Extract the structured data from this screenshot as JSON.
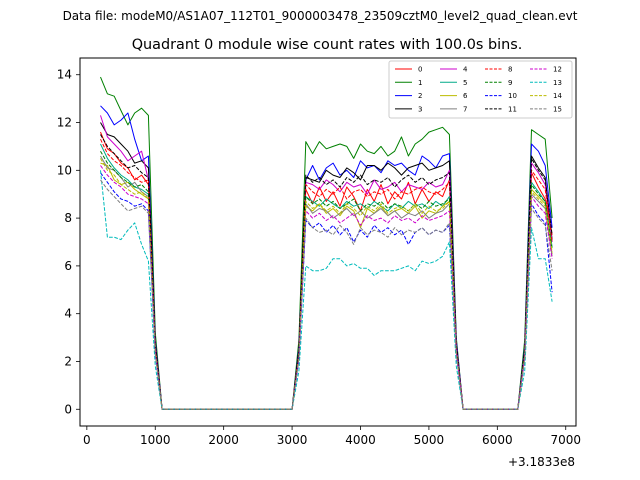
{
  "chart_data": {
    "type": "line",
    "suptitle": "Data file: modeM0/AS1A07_112T01_9000003478_23509cztM0_level2_quad_clean.evt",
    "title": "Quadrant 0 module wise count rates with 100.0s bins.",
    "xlabel": "",
    "ylabel": "",
    "x_offset_label": "+3.1833e8",
    "xlim": [
      -100,
      7150
    ],
    "ylim": [
      -0.7,
      14.7
    ],
    "xticks": [
      0,
      1000,
      2000,
      3000,
      4000,
      5000,
      6000,
      7000
    ],
    "xtick_labels": [
      "0",
      "1000",
      "2000",
      "3000",
      "4000",
      "5000",
      "6000",
      "7000"
    ],
    "yticks": [
      0,
      2,
      4,
      6,
      8,
      10,
      12,
      14
    ],
    "ytick_labels": [
      "0",
      "2",
      "4",
      "6",
      "8",
      "10",
      "12",
      "14"
    ],
    "grid": false,
    "legend_location": "top-right",
    "legend_columns": 4,
    "x": [
      200,
      300,
      400,
      500,
      600,
      700,
      800,
      900,
      1000,
      1100,
      1200,
      1300,
      1400,
      1500,
      1600,
      1700,
      1800,
      1900,
      2000,
      2100,
      2200,
      2300,
      2400,
      2500,
      2600,
      2700,
      2800,
      2900,
      3000,
      3100,
      3200,
      3300,
      3400,
      3500,
      3600,
      3700,
      3800,
      3900,
      4000,
      4100,
      4200,
      4300,
      4400,
      4500,
      4600,
      4700,
      4800,
      4900,
      5000,
      5100,
      5200,
      5300,
      5400,
      5500,
      5600,
      5700,
      5800,
      5900,
      6000,
      6100,
      6200,
      6300,
      6400,
      6500,
      6600,
      6700,
      6800
    ],
    "series": [
      {
        "name": "0",
        "color": "#ff0000",
        "dash": "solid",
        "values": [
          11.6,
          10.9,
          10.7,
          10.3,
          10.1,
          9.6,
          9.8,
          9.4,
          2.6,
          0,
          0,
          0,
          0,
          0,
          0,
          0,
          0,
          0,
          0,
          0,
          0,
          0,
          0,
          0,
          0,
          0,
          0,
          0,
          0,
          2.4,
          9.2,
          8.6,
          9.3,
          8.7,
          9.1,
          8.5,
          9.3,
          8.9,
          8.3,
          9.2,
          8.7,
          9.4,
          8.6,
          9.1,
          8.8,
          9.5,
          8.6,
          9.2,
          8.7,
          9.1,
          8.9,
          9.6,
          2.6,
          0,
          0,
          0,
          0,
          0,
          0,
          0,
          0,
          0,
          2.3,
          9.9,
          9.3,
          8.8,
          7.3
        ]
      },
      {
        "name": "1",
        "color": "#008000",
        "dash": "solid",
        "values": [
          13.9,
          13.2,
          13.1,
          12.5,
          11.9,
          12.4,
          12.6,
          12.3,
          3.2,
          0,
          0,
          0,
          0,
          0,
          0,
          0,
          0,
          0,
          0,
          0,
          0,
          0,
          0,
          0,
          0,
          0,
          0,
          0,
          0,
          2.9,
          11.2,
          10.7,
          11.2,
          10.9,
          11.0,
          11.1,
          11.0,
          10.5,
          11.1,
          10.8,
          10.7,
          11.0,
          10.6,
          10.8,
          11.4,
          10.6,
          11.1,
          11.3,
          11.6,
          11.7,
          11.8,
          11.5,
          3.0,
          0,
          0,
          0,
          0,
          0,
          0,
          0,
          0,
          0,
          2.9,
          11.7,
          11.5,
          11.3,
          8.0
        ]
      },
      {
        "name": "2",
        "color": "#0000ff",
        "dash": "solid",
        "values": [
          12.7,
          12.4,
          11.9,
          12.1,
          12.4,
          11.3,
          10.4,
          10.6,
          2.9,
          0,
          0,
          0,
          0,
          0,
          0,
          0,
          0,
          0,
          0,
          0,
          0,
          0,
          0,
          0,
          0,
          0,
          0,
          0,
          0,
          2.6,
          9.6,
          10.2,
          9.6,
          10.1,
          10.3,
          9.8,
          10.0,
          9.7,
          10.4,
          10.1,
          10.2,
          9.9,
          10.4,
          10.2,
          10.3,
          10.0,
          9.8,
          10.6,
          10.4,
          10.1,
          10.6,
          10.7,
          2.9,
          0,
          0,
          0,
          0,
          0,
          0,
          0,
          0,
          0,
          2.6,
          11.1,
          10.8,
          10.2,
          7.6
        ]
      },
      {
        "name": "3",
        "color": "#000000",
        "dash": "solid",
        "values": [
          12.0,
          11.5,
          11.4,
          11.1,
          10.8,
          10.3,
          10.4,
          10.1,
          2.8,
          0,
          0,
          0,
          0,
          0,
          0,
          0,
          0,
          0,
          0,
          0,
          0,
          0,
          0,
          0,
          0,
          0,
          0,
          0,
          0,
          2.5,
          9.7,
          9.6,
          9.5,
          10.0,
          9.8,
          9.7,
          10.1,
          9.9,
          9.6,
          10.2,
          10.2,
          10.0,
          10.3,
          10.1,
          9.8,
          10.1,
          10.2,
          10.3,
          10.0,
          10.1,
          10.2,
          10.4,
          2.8,
          0,
          0,
          0,
          0,
          0,
          0,
          0,
          0,
          0,
          2.5,
          10.6,
          10.1,
          9.7,
          7.1
        ]
      },
      {
        "name": "4",
        "color": "#cc00cc",
        "dash": "solid",
        "values": [
          12.3,
          11.4,
          11.1,
          10.8,
          10.4,
          10.6,
          10.8,
          9.6,
          2.7,
          0,
          0,
          0,
          0,
          0,
          0,
          0,
          0,
          0,
          0,
          0,
          0,
          0,
          0,
          0,
          0,
          0,
          0,
          0,
          0,
          2.4,
          9.5,
          9.4,
          9.2,
          9.6,
          9.4,
          9.1,
          9.5,
          9.3,
          9.4,
          9.0,
          9.6,
          9.2,
          9.3,
          9.5,
          9.1,
          9.4,
          9.3,
          9.2,
          9.5,
          9.3,
          9.4,
          10.0,
          2.7,
          0,
          0,
          0,
          0,
          0,
          0,
          0,
          0,
          0,
          2.4,
          10.3,
          9.9,
          9.4,
          7.0
        ]
      },
      {
        "name": "5",
        "color": "#00aa88",
        "dash": "solid",
        "values": [
          11.1,
          10.5,
          10.1,
          9.8,
          9.6,
          9.3,
          9.2,
          9.0,
          2.5,
          0,
          0,
          0,
          0,
          0,
          0,
          0,
          0,
          0,
          0,
          0,
          0,
          0,
          0,
          0,
          0,
          0,
          0,
          0,
          0,
          2.3,
          8.9,
          8.7,
          8.5,
          8.8,
          8.6,
          8.4,
          8.7,
          8.5,
          8.6,
          8.4,
          8.7,
          8.5,
          8.3,
          8.6,
          8.4,
          8.7,
          8.5,
          8.6,
          8.4,
          8.7,
          8.5,
          8.9,
          2.5,
          0,
          0,
          0,
          0,
          0,
          0,
          0,
          0,
          0,
          2.3,
          9.5,
          9.1,
          8.7,
          6.8
        ]
      },
      {
        "name": "6",
        "color": "#bbbb00",
        "dash": "solid",
        "values": [
          10.3,
          10.2,
          9.6,
          9.4,
          9.5,
          9.2,
          9.0,
          8.8,
          2.4,
          0,
          0,
          0,
          0,
          0,
          0,
          0,
          0,
          0,
          0,
          0,
          0,
          0,
          0,
          0,
          0,
          0,
          0,
          0,
          0,
          2.2,
          8.5,
          8.3,
          8.6,
          8.2,
          8.4,
          8.1,
          8.5,
          8.3,
          7.6,
          8.4,
          8.2,
          8.5,
          8.1,
          8.3,
          8.4,
          8.2,
          8.5,
          8.0,
          8.3,
          8.2,
          8.5,
          8.7,
          2.4,
          0,
          0,
          0,
          0,
          0,
          0,
          0,
          0,
          0,
          2.2,
          9.2,
          8.9,
          8.6,
          6.5
        ]
      },
      {
        "name": "7",
        "color": "#7f7f7f",
        "dash": "solid",
        "values": [
          10.6,
          10.1,
          10.0,
          9.7,
          9.3,
          9.5,
          9.1,
          8.9,
          2.4,
          0,
          0,
          0,
          0,
          0,
          0,
          0,
          0,
          0,
          0,
          0,
          0,
          0,
          0,
          0,
          0,
          0,
          0,
          0,
          0,
          2.3,
          8.6,
          8.2,
          8.4,
          8.3,
          8.0,
          8.2,
          8.4,
          8.1,
          8.3,
          8.0,
          8.2,
          8.4,
          8.1,
          8.3,
          8.0,
          8.2,
          8.1,
          8.3,
          8.0,
          8.2,
          8.3,
          8.6,
          2.4,
          0,
          0,
          0,
          0,
          0,
          0,
          0,
          0,
          0,
          2.3,
          9.0,
          8.7,
          8.4,
          6.4
        ]
      },
      {
        "name": "8",
        "color": "#ff0000",
        "dash": "dashed",
        "values": [
          11.3,
          10.7,
          10.4,
          10.2,
          9.9,
          9.7,
          9.5,
          9.6,
          2.6,
          0,
          0,
          0,
          0,
          0,
          0,
          0,
          0,
          0,
          0,
          0,
          0,
          0,
          0,
          0,
          0,
          0,
          0,
          0,
          0,
          2.4,
          9.4,
          9.1,
          8.9,
          9.2,
          9.0,
          9.3,
          8.8,
          9.1,
          9.2,
          8.9,
          9.1,
          9.0,
          9.2,
          8.8,
          9.1,
          9.0,
          9.2,
          9.3,
          9.1,
          9.0,
          9.2,
          9.5,
          2.6,
          0,
          0,
          0,
          0,
          0,
          0,
          0,
          0,
          0,
          2.4,
          10.0,
          9.6,
          9.2,
          7.0
        ]
      },
      {
        "name": "9",
        "color": "#008000",
        "dash": "dashed",
        "values": [
          10.8,
          10.3,
          10.0,
          9.7,
          9.5,
          9.3,
          9.4,
          9.1,
          2.5,
          0,
          0,
          0,
          0,
          0,
          0,
          0,
          0,
          0,
          0,
          0,
          0,
          0,
          0,
          0,
          0,
          0,
          0,
          0,
          0,
          2.3,
          8.9,
          8.6,
          8.8,
          8.5,
          8.7,
          8.4,
          8.6,
          8.8,
          8.3,
          8.6,
          8.5,
          8.7,
          8.4,
          8.6,
          8.5,
          8.3,
          8.6,
          8.4,
          8.7,
          8.5,
          8.6,
          8.8,
          2.5,
          0,
          0,
          0,
          0,
          0,
          0,
          0,
          0,
          0,
          2.3,
          9.4,
          9.0,
          8.7,
          6.7
        ]
      },
      {
        "name": "10",
        "color": "#0000ff",
        "dash": "dashed",
        "values": [
          9.9,
          9.5,
          9.1,
          8.8,
          8.7,
          8.5,
          8.6,
          8.3,
          2.3,
          0,
          0,
          0,
          0,
          0,
          0,
          0,
          0,
          0,
          0,
          0,
          0,
          0,
          0,
          0,
          0,
          0,
          0,
          0,
          0,
          2.1,
          7.9,
          7.6,
          7.8,
          7.4,
          7.7,
          7.3,
          7.6,
          7.0,
          7.5,
          7.2,
          7.7,
          7.4,
          7.6,
          7.3,
          7.5,
          6.9,
          7.4,
          7.6,
          7.3,
          7.5,
          7.4,
          7.7,
          2.3,
          0,
          0,
          0,
          0,
          0,
          0,
          0,
          0,
          0,
          2.1,
          8.6,
          8.1,
          7.8,
          4.9
        ]
      },
      {
        "name": "11",
        "color": "#000000",
        "dash": "dashed",
        "values": [
          11.5,
          11.0,
          10.7,
          10.4,
          10.1,
          10.2,
          9.9,
          9.7,
          2.7,
          0,
          0,
          0,
          0,
          0,
          0,
          0,
          0,
          0,
          0,
          0,
          0,
          0,
          0,
          0,
          0,
          0,
          0,
          0,
          0,
          2.5,
          9.8,
          9.5,
          9.7,
          9.4,
          9.6,
          9.3,
          9.7,
          9.5,
          9.8,
          9.4,
          9.6,
          9.5,
          9.7,
          9.3,
          9.6,
          9.8,
          9.5,
          9.7,
          9.4,
          9.6,
          9.7,
          9.9,
          2.7,
          0,
          0,
          0,
          0,
          0,
          0,
          0,
          0,
          0,
          2.5,
          10.5,
          10.0,
          9.6,
          7.3
        ]
      },
      {
        "name": "12",
        "color": "#cc00cc",
        "dash": "dashed",
        "values": [
          10.2,
          9.8,
          9.5,
          9.3,
          9.0,
          8.9,
          8.8,
          8.6,
          2.4,
          0,
          0,
          0,
          0,
          0,
          0,
          0,
          0,
          0,
          0,
          0,
          0,
          0,
          0,
          0,
          0,
          0,
          0,
          0,
          0,
          2.2,
          8.3,
          8.0,
          8.2,
          7.9,
          8.1,
          7.8,
          8.0,
          8.2,
          7.7,
          8.1,
          7.9,
          8.0,
          7.8,
          8.1,
          7.9,
          8.0,
          7.8,
          8.1,
          7.9,
          8.0,
          8.1,
          8.3,
          2.4,
          0,
          0,
          0,
          0,
          0,
          0,
          0,
          0,
          0,
          2.2,
          8.9,
          8.5,
          8.2,
          6.3
        ]
      },
      {
        "name": "13",
        "color": "#00bbbb",
        "dash": "dashed",
        "values": [
          10.0,
          7.2,
          7.2,
          7.1,
          7.5,
          7.8,
          6.9,
          6.2,
          1.8,
          0,
          0,
          0,
          0,
          0,
          0,
          0,
          0,
          0,
          0,
          0,
          0,
          0,
          0,
          0,
          0,
          0,
          0,
          0,
          0,
          1.6,
          6.0,
          5.8,
          5.8,
          5.9,
          6.3,
          6.3,
          6.0,
          6.1,
          5.9,
          5.9,
          5.6,
          5.8,
          5.8,
          5.8,
          5.9,
          6.0,
          5.8,
          6.2,
          6.1,
          6.2,
          6.4,
          7.0,
          1.8,
          0,
          0,
          0,
          0,
          0,
          0,
          0,
          0,
          0,
          1.6,
          7.6,
          6.3,
          6.3,
          4.5
        ]
      },
      {
        "name": "14",
        "color": "#bbbb00",
        "dash": "dashed",
        "values": [
          10.5,
          10.0,
          9.8,
          9.4,
          9.2,
          9.0,
          9.1,
          8.8,
          2.4,
          0,
          0,
          0,
          0,
          0,
          0,
          0,
          0,
          0,
          0,
          0,
          0,
          0,
          0,
          0,
          0,
          0,
          0,
          0,
          0,
          2.2,
          8.7,
          8.4,
          8.6,
          8.3,
          8.5,
          8.2,
          8.6,
          8.4,
          8.1,
          8.5,
          8.3,
          8.6,
          8.2,
          8.4,
          8.5,
          8.3,
          8.6,
          8.2,
          8.5,
          8.3,
          8.4,
          8.7,
          2.4,
          0,
          0,
          0,
          0,
          0,
          0,
          0,
          0,
          0,
          2.2,
          9.1,
          8.8,
          8.5,
          6.6
        ]
      },
      {
        "name": "15",
        "color": "#7f7f7f",
        "dash": "dashed",
        "values": [
          9.6,
          9.2,
          8.9,
          8.6,
          8.3,
          8.4,
          8.5,
          8.2,
          2.3,
          0,
          0,
          0,
          0,
          0,
          0,
          0,
          0,
          0,
          0,
          0,
          0,
          0,
          0,
          0,
          0,
          0,
          0,
          0,
          0,
          2.1,
          8.0,
          7.6,
          7.4,
          7.5,
          7.3,
          7.7,
          7.4,
          6.9,
          7.6,
          7.3,
          7.5,
          7.4,
          7.2,
          7.6,
          7.3,
          7.5,
          7.4,
          7.6,
          7.3,
          7.5,
          7.4,
          7.8,
          2.3,
          0,
          0,
          0,
          0,
          0,
          0,
          0,
          0,
          0,
          2.1,
          8.4,
          8.0,
          7.7,
          5.8
        ]
      }
    ]
  }
}
